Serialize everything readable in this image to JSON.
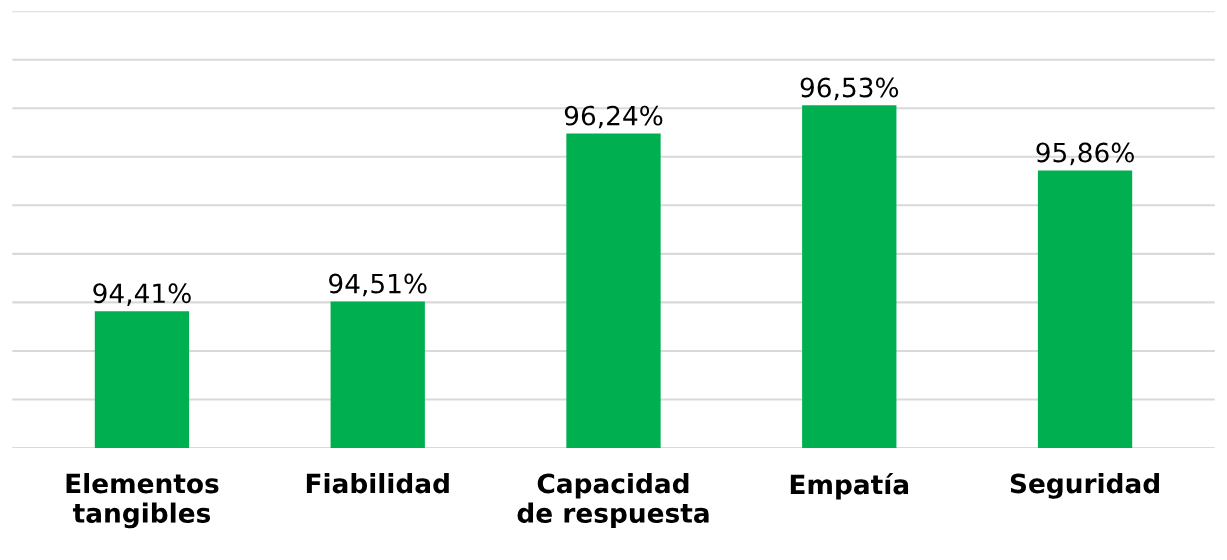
{
  "chart_data": {
    "type": "bar",
    "categories": [
      "Elementos\ntangibles",
      "Fiabilidad",
      "Capacidad\nde respuesta",
      "Empatía",
      "Seguridad"
    ],
    "values": [
      94.41,
      94.51,
      96.24,
      96.53,
      95.86
    ],
    "value_labels": [
      "94,41%",
      "94,51%",
      "96,24%",
      "96,53%",
      "95,86%"
    ],
    "color": "#00b050",
    "ylim": [
      93,
      97.5
    ],
    "yticks": [
      {
        "value": 93,
        "label": null
      },
      {
        "value": 93.5,
        "label": null
      },
      {
        "value": 94,
        "label": null
      },
      {
        "value": 94.5,
        "label": null
      },
      {
        "value": 95,
        "label": null
      },
      {
        "value": 95.5,
        "label": null
      },
      {
        "value": 96,
        "label": null
      },
      {
        "value": 96.5,
        "label": null
      },
      {
        "value": 97,
        "label": null
      },
      {
        "value": 97.5,
        "label": null
      }
    ],
    "tick_labels": "x",
    "grid": "y",
    "legend": false
  }
}
